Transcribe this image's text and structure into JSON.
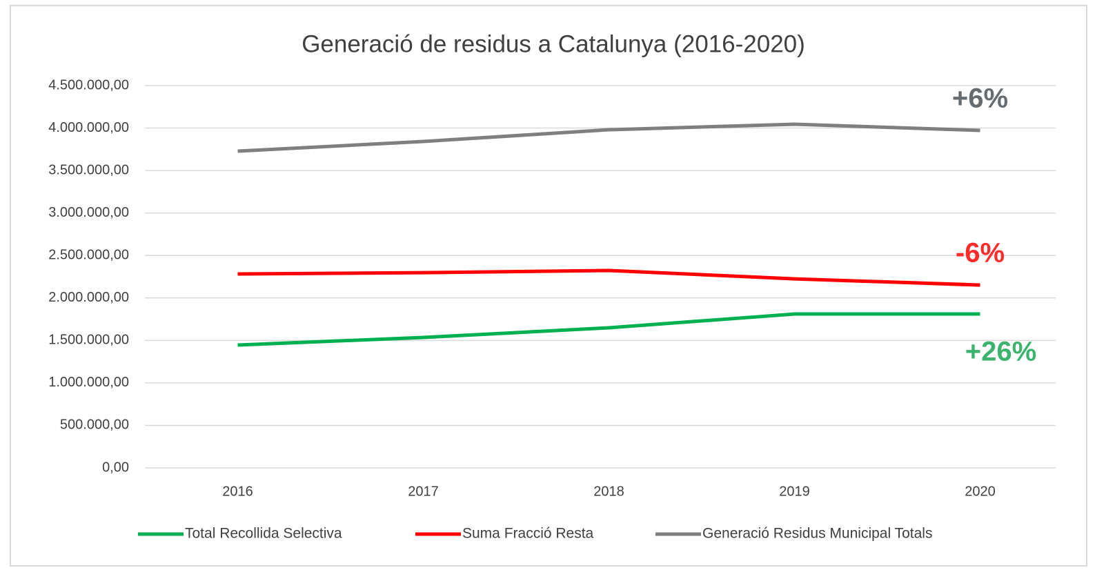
{
  "chart_data": {
    "type": "line",
    "title": "Generació de residus a Catalunya (2016-2020)",
    "categories": [
      "2016",
      "2017",
      "2018",
      "2019",
      "2020"
    ],
    "series": [
      {
        "name": "Total Recollida Selectiva",
        "color": "#00b050",
        "values": [
          1446000,
          1535000,
          1649000,
          1811000,
          1811000
        ],
        "annotation": "+26%",
        "annotation_color": "#3cb46e"
      },
      {
        "name": "Suma Fracció Resta",
        "color": "#ff0000",
        "values": [
          2282000,
          2298000,
          2323000,
          2225000,
          2152000
        ],
        "annotation": "-6%",
        "annotation_color": "#ff2a2a"
      },
      {
        "name": "Generació Residus Municipal Totals",
        "color": "#7f7f7f",
        "values": [
          3728000,
          3842000,
          3980000,
          4045000,
          3972000
        ],
        "annotation": "+6%",
        "annotation_color": "#666b70"
      }
    ],
    "ylim": [
      0,
      4500000
    ],
    "yticks": [
      {
        "value": 0,
        "label": "0,00"
      },
      {
        "value": 500000,
        "label": "500.000,00"
      },
      {
        "value": 1000000,
        "label": "1.000.000,00"
      },
      {
        "value": 1500000,
        "label": "1.500.000,00"
      },
      {
        "value": 2000000,
        "label": "2.000.000,00"
      },
      {
        "value": 2500000,
        "label": "2.500.000,00"
      },
      {
        "value": 3000000,
        "label": "3.000.000,00"
      },
      {
        "value": 3500000,
        "label": "3.500.000,00"
      },
      {
        "value": 4000000,
        "label": "4.000.000,00"
      },
      {
        "value": 4500000,
        "label": "4.500.000,00"
      }
    ],
    "grid": true,
    "legend": "bottom"
  }
}
